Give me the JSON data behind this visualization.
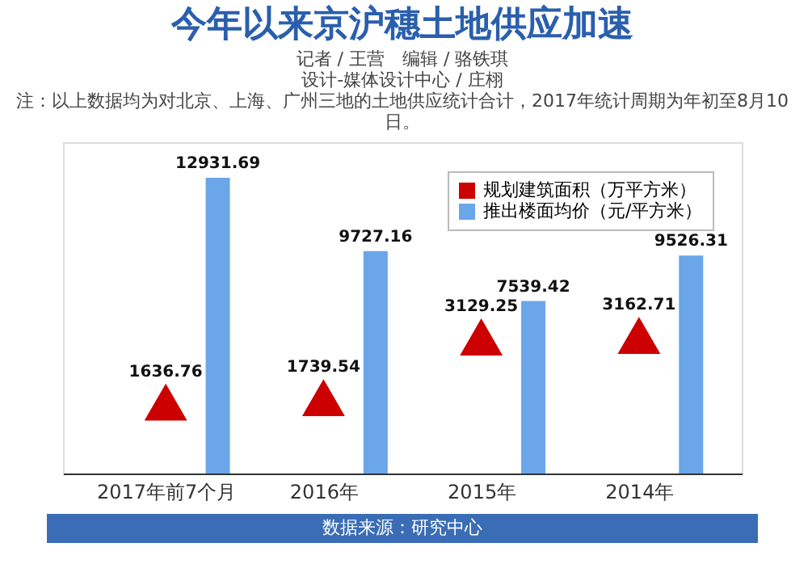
{
  "chart_data": {
    "type": "bar",
    "title": "今年以来京沪穗土地供应加速",
    "subtitle": "记者 / 王营　编辑 / 骆铁琪",
    "annotations": [
      "设计-媒体设计中心 / 庄栩",
      "注：以上数据均为对北京、上海、广州三地的土地供应统计合计，2017年统计周期为年初至8月10日。",
      "数据来源：研究中心"
    ],
    "categories": [
      "2017年前7个月",
      "2016年",
      "2015年",
      "2014年"
    ],
    "series": [
      {
        "name": "规划建筑面积（万平方米）",
        "type": "scatter",
        "marker": "triangle",
        "axis": "y2",
        "color": "#cc0000",
        "values": [
          1636.76,
          1739.54,
          3129.25,
          3162.71
        ]
      },
      {
        "name": "推出楼面均价（元/平方米）",
        "color": "#6aa6e8",
        "values": [
          12931.69,
          9727.16,
          7539.42,
          9526.31
        ]
      }
    ],
    "data_labels": true,
    "legend": "top right",
    "tick_labels": "x"
  }
}
